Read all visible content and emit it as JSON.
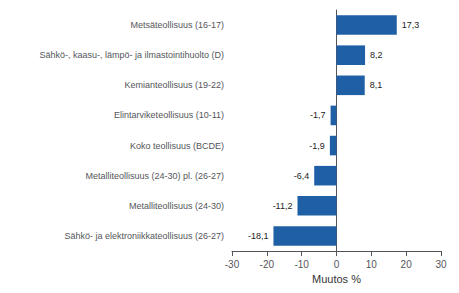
{
  "chart_data": {
    "type": "bar",
    "orientation": "horizontal",
    "categories": [
      "Sähkö- ja elektroniikkateollisuus (26-27)",
      "Metalliteollisuus (24-30)",
      "Metalliteollisuus (24-30) pl. (26-27)",
      "Koko teollisuus (BCDE)",
      "Elintarviketeollisuus (10-11)",
      "Kemianteollisuus (19-22)",
      "Sähkö-, kaasu-, lämpö- ja ilmastointihuolto (D)",
      "Metsäteollisuus (16-17)"
    ],
    "values": [
      -18.1,
      -11.2,
      -6.4,
      -1.9,
      -1.7,
      8.1,
      8.2,
      17.3
    ],
    "value_labels": [
      "-18,1",
      "-11,2",
      "-6,4",
      "-1,9",
      "-1,7",
      "8,1",
      "8,2",
      "17,3"
    ],
    "data_labels": true,
    "color": "#1F5FA6",
    "xlabel": "Muutos %",
    "xlim": [
      -30,
      30
    ],
    "xticks": [
      -30,
      -20,
      -10,
      0,
      10,
      20,
      30
    ],
    "grid": false
  }
}
